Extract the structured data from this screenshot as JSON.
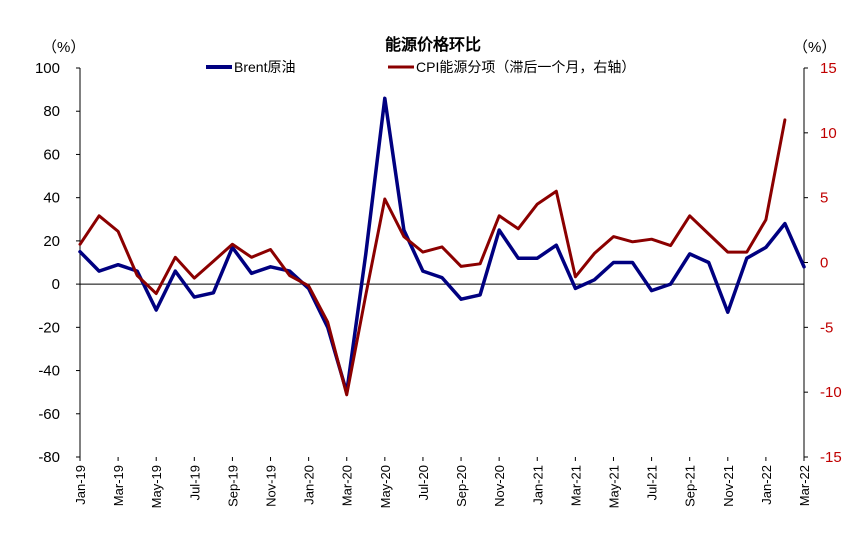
{
  "chart_data": {
    "type": "line",
    "title": "能源价格环比",
    "left_axis": {
      "unit_label": "（%）",
      "ylim": [
        -80,
        100
      ],
      "ticks": [
        -80,
        -60,
        -40,
        -20,
        0,
        20,
        40,
        60,
        80,
        100
      ]
    },
    "right_axis": {
      "unit_label": "（%）",
      "ylim": [
        -15,
        15
      ],
      "ticks": [
        -15,
        -10,
        -5,
        0,
        5,
        10,
        15
      ],
      "color": "#c00000"
    },
    "x_axis": {
      "start": "2019-01",
      "end": "2022-03",
      "tick_labels": [
        "Jan-19",
        "Mar-19",
        "May-19",
        "Jul-19",
        "Sep-19",
        "Nov-19",
        "Jan-20",
        "Mar-20",
        "May-20",
        "Jul-20",
        "Sep-20",
        "Nov-20",
        "Jan-21",
        "Mar-21",
        "May-21",
        "Jul-21",
        "Sep-21",
        "Nov-21",
        "Jan-22",
        "Mar-22"
      ]
    },
    "legend_position": "top",
    "grid": false,
    "series": [
      {
        "name": "Brent原油",
        "axis": "left",
        "color": "#000080",
        "x": [
          "2019-01",
          "2019-02",
          "2019-03",
          "2019-04",
          "2019-05",
          "2019-06",
          "2019-07",
          "2019-08",
          "2019-09",
          "2019-10",
          "2019-11",
          "2019-12",
          "2020-01",
          "2020-02",
          "2020-03",
          "2020-04",
          "2020-05",
          "2020-06",
          "2020-07",
          "2020-08",
          "2020-09",
          "2020-10",
          "2020-11",
          "2020-12",
          "2021-01",
          "2021-02",
          "2021-03",
          "2021-04",
          "2021-05",
          "2021-06",
          "2021-07",
          "2021-08",
          "2021-09",
          "2021-10",
          "2021-11",
          "2021-12",
          "2022-01",
          "2022-02",
          "2022-03"
        ],
        "values": [
          15,
          6,
          9,
          6,
          -12,
          6,
          -6,
          -4,
          17,
          5,
          8,
          6,
          -2,
          -20,
          -50,
          14,
          86,
          25,
          6,
          3,
          -7,
          -5,
          25,
          12,
          12,
          18,
          -2,
          2,
          10,
          10,
          -3,
          0,
          14,
          10,
          -13,
          12,
          17,
          28,
          8
        ]
      },
      {
        "name": "CPI能源分项（滞后一个月，右轴）",
        "axis": "right",
        "color": "#8b0000",
        "x": [
          "2019-01",
          "2019-02",
          "2019-03",
          "2019-04",
          "2019-05",
          "2019-06",
          "2019-07",
          "2019-08",
          "2019-09",
          "2019-10",
          "2019-11",
          "2019-12",
          "2020-01",
          "2020-02",
          "2020-03",
          "2020-04",
          "2020-05",
          "2020-06",
          "2020-07",
          "2020-08",
          "2020-09",
          "2020-10",
          "2020-11",
          "2020-12",
          "2021-01",
          "2021-02",
          "2021-03",
          "2021-04",
          "2021-05",
          "2021-06",
          "2021-07",
          "2021-08",
          "2021-09",
          "2021-10",
          "2021-11",
          "2021-12",
          "2022-01",
          "2022-02"
        ],
        "values": [
          1.4,
          3.6,
          2.4,
          -1.0,
          -2.4,
          0.4,
          -1.2,
          0.1,
          1.4,
          0.4,
          1.0,
          -1.0,
          -1.8,
          -4.6,
          -10.2,
          -2.5,
          4.9,
          2.0,
          0.8,
          1.2,
          -0.3,
          -0.1,
          3.6,
          2.6,
          4.5,
          5.5,
          -1.1,
          0.7,
          2.0,
          1.6,
          1.8,
          1.3,
          3.6,
          2.2,
          0.8,
          0.8,
          3.3,
          11.0
        ]
      }
    ]
  }
}
